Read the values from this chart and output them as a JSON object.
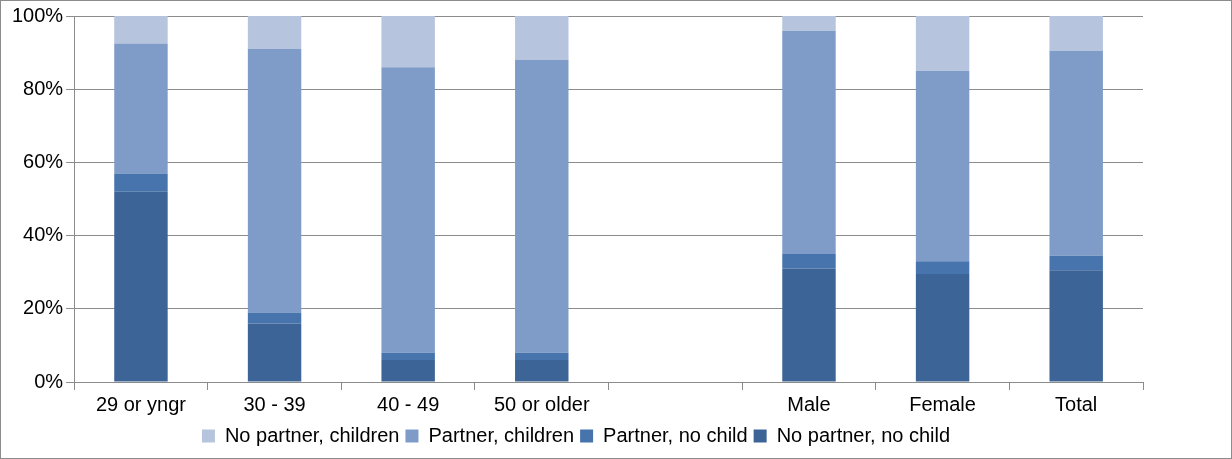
{
  "chart_data": {
    "type": "bar",
    "stacked": true,
    "categories": [
      "29 or yngr",
      "30 - 39",
      "40 - 49",
      "50 or older",
      null,
      "Male",
      "Female",
      "Total"
    ],
    "series": [
      {
        "name": "No partner, no child",
        "color": "#3c6496",
        "values": [
          52,
          16,
          6,
          6,
          null,
          31,
          29.5,
          30.5
        ]
      },
      {
        "name": "Partner, no child",
        "color": "#4774ad",
        "values": [
          5,
          3,
          2,
          2,
          null,
          4,
          3.5,
          4
        ]
      },
      {
        "name": "Partner, children",
        "color": "#7f9cc8",
        "values": [
          35.5,
          72,
          78,
          80,
          null,
          61,
          52,
          56
        ]
      },
      {
        "name": "No partner, children",
        "color": "#b6c4de",
        "values": [
          7.5,
          9,
          14,
          12,
          null,
          4,
          15,
          9.5
        ]
      }
    ],
    "ylim": [
      0,
      100
    ],
    "yticks": [
      {
        "value": 0,
        "label": "0%"
      },
      {
        "value": 20,
        "label": "20%"
      },
      {
        "value": 40,
        "label": "40%"
      },
      {
        "value": 60,
        "label": "60%"
      },
      {
        "value": 80,
        "label": "80%"
      },
      {
        "value": 100,
        "label": "100%"
      }
    ],
    "grid": "y",
    "legend": "bottom"
  }
}
